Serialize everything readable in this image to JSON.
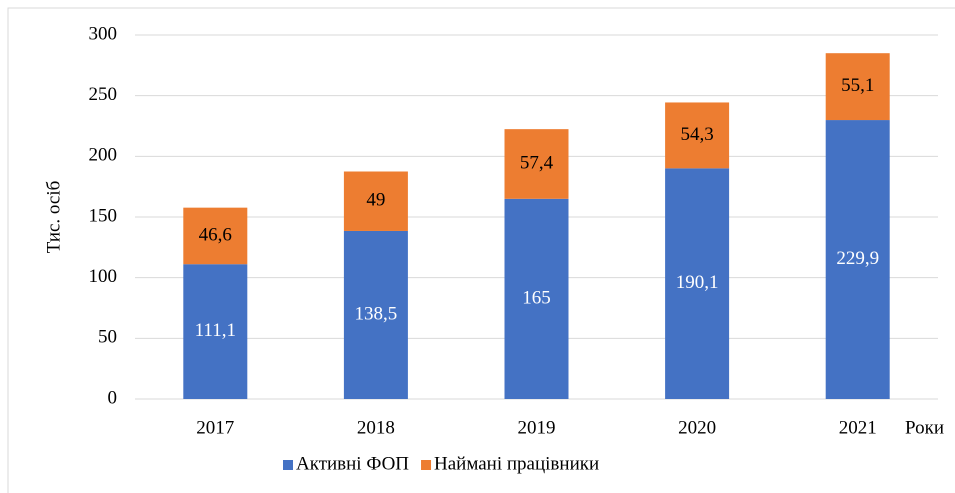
{
  "chart_data": {
    "type": "stacked_bar",
    "categories": [
      "2017",
      "2018",
      "2019",
      "2020",
      "2021"
    ],
    "series": [
      {
        "name": "Активні ФОП",
        "color": "#4472c4",
        "values": [
          111.1,
          138.5,
          165,
          190.1,
          229.9
        ],
        "value_labels": [
          "111,1",
          "138,5",
          "165",
          "190,1",
          "229,9"
        ]
      },
      {
        "name": "Наймані працівники",
        "color": "#ed7d31",
        "values": [
          46.6,
          49,
          57.4,
          54.3,
          55.1
        ],
        "value_labels": [
          "46,6",
          "49",
          "57,4",
          "54,3",
          "55,1"
        ]
      }
    ],
    "y_label": "Тис. осіб",
    "x_label": "Роки",
    "ylim": [
      0,
      300
    ],
    "yticks": [
      0,
      50,
      100,
      150,
      200,
      250,
      300
    ],
    "grid": true,
    "legend": "bottom"
  }
}
